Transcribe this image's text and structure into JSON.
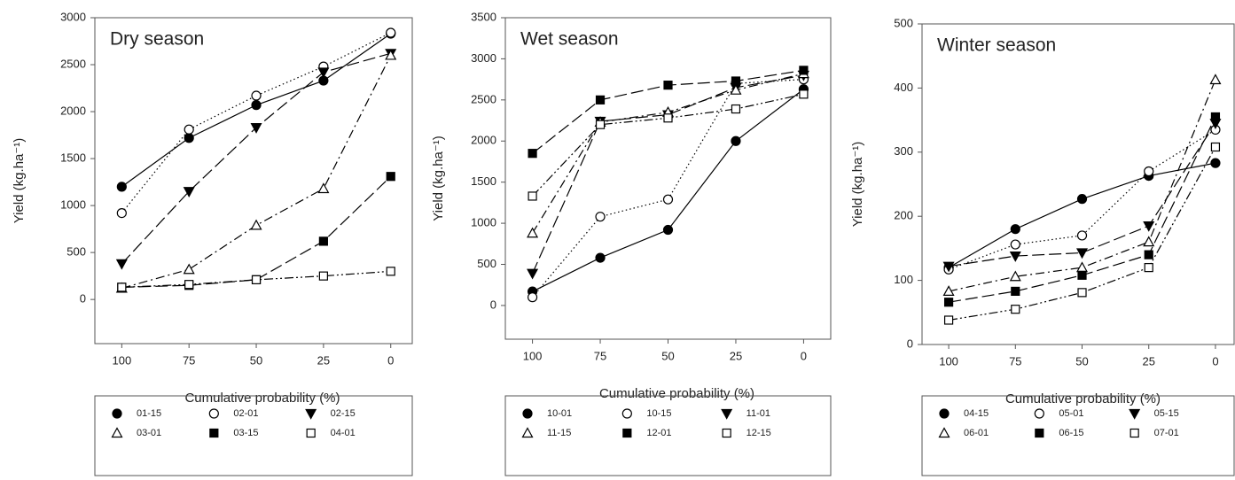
{
  "chart_data": [
    {
      "type": "line",
      "title": "Dry season",
      "xlabel": "Cumulative probability (%)",
      "ylabel": "Yield (kg.ha⁻¹)",
      "x": [
        100,
        75,
        50,
        25,
        0
      ],
      "xlim": [
        110,
        -8
      ],
      "xticks": [
        100,
        75,
        50,
        25,
        0
      ],
      "ylim": [
        -470,
        3000
      ],
      "yticks": [
        0,
        500,
        1000,
        1500,
        2000,
        2500,
        3000
      ],
      "series": [
        {
          "name": "01-15",
          "color": "#000000",
          "marker": "circle-filled",
          "dash": "solid",
          "values": [
            1200,
            1720,
            2070,
            2330,
            2830
          ]
        },
        {
          "name": "02-01",
          "color": "#000000",
          "marker": "circle-open",
          "dash": "dotted",
          "values": [
            920,
            1810,
            2170,
            2480,
            2840
          ]
        },
        {
          "name": "02-15",
          "color": "#000000",
          "marker": "triangle-down-filled",
          "dash": "long-dash",
          "values": [
            380,
            1150,
            1830,
            2420,
            2620
          ]
        },
        {
          "name": "03-01",
          "color": "#000000",
          "marker": "triangle-up-open",
          "dash": "dash-dot",
          "values": [
            120,
            320,
            790,
            1180,
            2600
          ]
        },
        {
          "name": "03-15",
          "color": "#000000",
          "marker": "square-filled",
          "dash": "long-dash",
          "values": [
            130,
            150,
            210,
            620,
            1310
          ]
        },
        {
          "name": "04-01",
          "color": "#000000",
          "marker": "square-open",
          "dash": "dash-dot-dot",
          "values": [
            130,
            160,
            210,
            250,
            300
          ]
        }
      ]
    },
    {
      "type": "line",
      "title": "Wet season",
      "xlabel": "Cumulative probability (%)",
      "ylabel": "Yield (kg.ha⁻¹)",
      "x": [
        100,
        75,
        50,
        25,
        0
      ],
      "xlim": [
        110,
        -10
      ],
      "xticks": [
        100,
        75,
        50,
        25,
        0
      ],
      "ylim": [
        -410,
        3500
      ],
      "yticks": [
        0,
        500,
        1000,
        1500,
        2000,
        2500,
        3000,
        3500
      ],
      "series": [
        {
          "name": "10-01",
          "color": "#000000",
          "marker": "circle-filled",
          "dash": "solid",
          "values": [
            170,
            580,
            920,
            2000,
            2630
          ]
        },
        {
          "name": "10-15",
          "color": "#000000",
          "marker": "circle-open",
          "dash": "dotted",
          "values": [
            100,
            1080,
            1290,
            2700,
            2750
          ]
        },
        {
          "name": "11-01",
          "color": "#000000",
          "marker": "triangle-down-filled",
          "dash": "long-dash",
          "values": [
            390,
            2240,
            2320,
            2650,
            2800
          ]
        },
        {
          "name": "11-15",
          "color": "#000000",
          "marker": "triangle-up-open",
          "dash": "dash-dot",
          "values": [
            880,
            2230,
            2350,
            2620,
            2820
          ]
        },
        {
          "name": "12-01",
          "color": "#000000",
          "marker": "square-filled",
          "dash": "long-dash",
          "values": [
            1850,
            2500,
            2680,
            2730,
            2860
          ]
        },
        {
          "name": "12-15",
          "color": "#000000",
          "marker": "square-open",
          "dash": "dash-dot-dot",
          "values": [
            1330,
            2200,
            2280,
            2390,
            2570
          ]
        }
      ]
    },
    {
      "type": "line",
      "title": "Winter season",
      "xlabel": "Cumulative probability (%)",
      "ylabel": "Yield (kg.ha⁻¹)",
      "x": [
        100,
        75,
        50,
        25,
        0
      ],
      "xlim": [
        110,
        -7
      ],
      "xticks": [
        100,
        75,
        50,
        25,
        0
      ],
      "ylim": [
        0,
        500
      ],
      "yticks": [
        0,
        100,
        200,
        300,
        400,
        500
      ],
      "series": [
        {
          "name": "04-15",
          "color": "#000000",
          "marker": "circle-filled",
          "dash": "solid",
          "values": [
            120,
            180,
            227,
            263,
            283
          ]
        },
        {
          "name": "05-01",
          "color": "#000000",
          "marker": "circle-open",
          "dash": "dotted",
          "values": [
            117,
            156,
            170,
            270,
            335
          ]
        },
        {
          "name": "05-15",
          "color": "#000000",
          "marker": "triangle-down-filled",
          "dash": "long-dash",
          "values": [
            122,
            138,
            143,
            185,
            345
          ]
        },
        {
          "name": "06-01",
          "color": "#000000",
          "marker": "triangle-up-open",
          "dash": "dash-dot",
          "values": [
            83,
            106,
            120,
            160,
            413
          ]
        },
        {
          "name": "06-15",
          "color": "#000000",
          "marker": "square-filled",
          "dash": "long-dash",
          "values": [
            66,
            83,
            108,
            140,
            355
          ]
        },
        {
          "name": "07-01",
          "color": "#000000",
          "marker": "square-open",
          "dash": "dash-dot-dot",
          "values": [
            38,
            55,
            81,
            120,
            308
          ]
        }
      ]
    }
  ]
}
